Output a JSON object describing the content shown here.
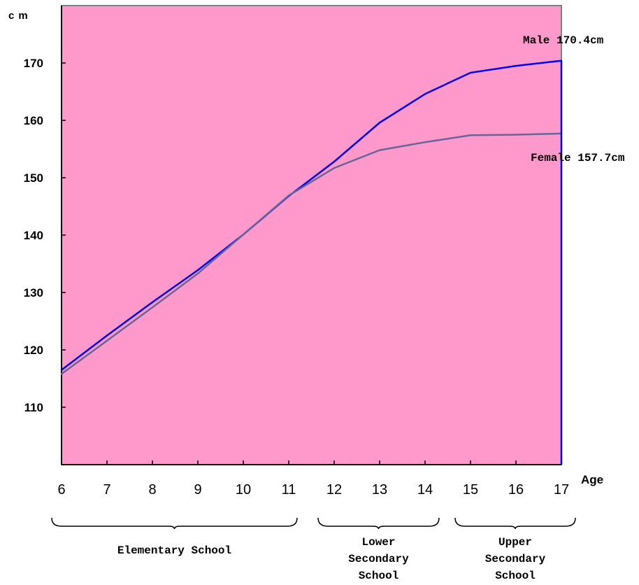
{
  "chart_data": {
    "type": "line",
    "ylabel": "cm",
    "xlabel": "Age",
    "x": [
      6,
      7,
      8,
      9,
      10,
      11,
      12,
      13,
      14,
      15,
      16,
      17
    ],
    "xlim": [
      6,
      17
    ],
    "ylim": [
      100,
      180
    ],
    "yticks": [
      110,
      120,
      130,
      140,
      150,
      160,
      170
    ],
    "grid": false,
    "background_color": "#FF99CC",
    "series": [
      {
        "name": "Male",
        "color": "#0000EE",
        "values": [
          116.5,
          122.5,
          128.3,
          133.9,
          140.1,
          146.8,
          152.8,
          159.6,
          164.6,
          168.3,
          169.5,
          170.4
        ]
      },
      {
        "name": "Female",
        "color": "#666699",
        "values": [
          115.8,
          121.6,
          127.4,
          133.3,
          140.1,
          146.9,
          151.7,
          154.8,
          156.2,
          157.4,
          157.5,
          157.7
        ]
      }
    ],
    "annotations": [
      {
        "series": "Male",
        "text": "Male 170.4cm"
      },
      {
        "series": "Female",
        "text": "Female 157.7cm"
      }
    ],
    "groups": [
      {
        "label_lines": [
          "Elementary School"
        ],
        "from": 6,
        "to": 11
      },
      {
        "label_lines": [
          "Lower",
          "Secondary",
          "School"
        ],
        "from": 12,
        "to": 14
      },
      {
        "label_lines": [
          "Upper",
          "Secondary",
          "School"
        ],
        "from": 15,
        "to": 17
      }
    ]
  }
}
